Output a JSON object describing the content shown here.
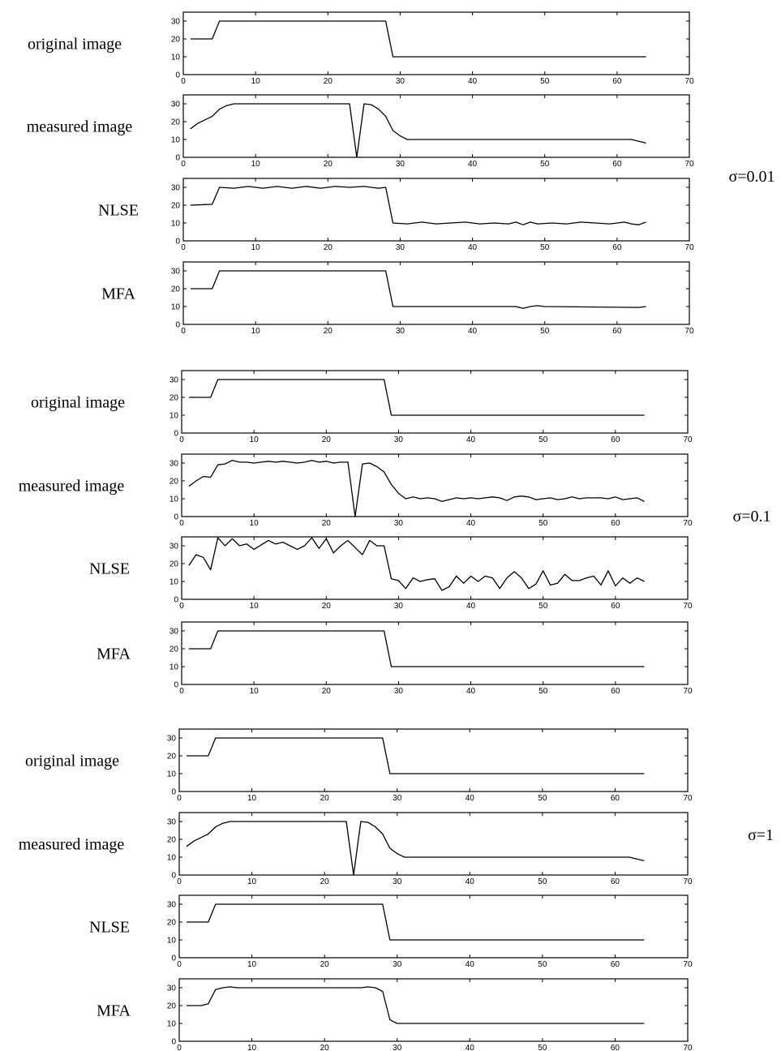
{
  "groups": [
    {
      "sigma_label": "σ=0.01"
    },
    {
      "sigma_label": "σ=0.1"
    },
    {
      "sigma_label": "σ=1"
    }
  ],
  "chart_data": [
    {
      "type": "line",
      "group": 0,
      "label": "original image",
      "xlim": [
        0,
        70
      ],
      "ylim": [
        0,
        35
      ],
      "xticks": [
        0,
        10,
        20,
        30,
        40,
        50,
        60,
        70
      ],
      "yticks": [
        0,
        10,
        20,
        30
      ],
      "x": [
        1,
        4,
        5,
        28,
        29,
        64
      ],
      "y": [
        20,
        20,
        30,
        30,
        10,
        10
      ]
    },
    {
      "type": "line",
      "group": 0,
      "label": "measured image",
      "xlim": [
        0,
        70
      ],
      "ylim": [
        0,
        35
      ],
      "xticks": [
        0,
        10,
        20,
        30,
        40,
        50,
        60,
        70
      ],
      "yticks": [
        0,
        10,
        20,
        30
      ],
      "x": [
        1,
        2,
        3,
        4,
        5,
        6,
        7,
        8,
        10,
        12,
        15,
        18,
        20,
        22,
        23,
        24,
        25,
        26,
        27,
        28,
        29,
        30,
        31,
        35,
        40,
        45,
        50,
        55,
        60,
        62,
        63,
        64
      ],
      "y": [
        16,
        19,
        21,
        23,
        27,
        29,
        30,
        30,
        30,
        30,
        30,
        30,
        30,
        30,
        30,
        0,
        30,
        29.5,
        27,
        23,
        15,
        12,
        10,
        10,
        10,
        10,
        10,
        10,
        10,
        10,
        9,
        8
      ]
    },
    {
      "type": "line",
      "group": 0,
      "label": "NLSE",
      "xlim": [
        0,
        70
      ],
      "ylim": [
        0,
        35
      ],
      "xticks": [
        0,
        10,
        20,
        30,
        40,
        50,
        60,
        70
      ],
      "yticks": [
        0,
        10,
        20,
        30
      ],
      "x": [
        1,
        4,
        5,
        7,
        9,
        11,
        13,
        15,
        17,
        19,
        21,
        23,
        25,
        27,
        28,
        29,
        31,
        33,
        35,
        37,
        39,
        41,
        43,
        45,
        46,
        47,
        48,
        49,
        51,
        53,
        55,
        57,
        59,
        61,
        62,
        63,
        64
      ],
      "y": [
        20,
        20.5,
        30,
        29.5,
        30.5,
        29.5,
        30.5,
        29.5,
        30.5,
        29.5,
        30.5,
        30,
        30.5,
        29.5,
        30,
        10,
        9.5,
        10.5,
        9.5,
        10,
        10.5,
        9.5,
        10,
        9.5,
        10.5,
        9,
        10.5,
        9.5,
        10,
        9.5,
        10.5,
        10,
        9.5,
        10.5,
        9.5,
        9,
        10.5
      ]
    },
    {
      "type": "line",
      "group": 0,
      "label": "MFA",
      "xlim": [
        0,
        70
      ],
      "ylim": [
        0,
        35
      ],
      "xticks": [
        0,
        10,
        20,
        30,
        40,
        50,
        60,
        70
      ],
      "yticks": [
        0,
        10,
        20,
        30
      ],
      "x": [
        1,
        4,
        5,
        28,
        29,
        46,
        47,
        48,
        49,
        50,
        63,
        64
      ],
      "y": [
        20,
        20,
        30,
        30,
        10,
        10,
        9,
        10,
        10.5,
        10,
        9.5,
        10
      ]
    },
    {
      "type": "line",
      "group": 1,
      "label": "original image",
      "xlim": [
        0,
        70
      ],
      "ylim": [
        0,
        35
      ],
      "xticks": [
        0,
        10,
        20,
        30,
        40,
        50,
        60,
        70
      ],
      "yticks": [
        0,
        10,
        20,
        30
      ],
      "x": [
        1,
        4,
        5,
        28,
        29,
        64
      ],
      "y": [
        20,
        20,
        30,
        30,
        10,
        10
      ]
    },
    {
      "type": "line",
      "group": 1,
      "label": "measured image",
      "xlim": [
        0,
        70
      ],
      "ylim": [
        0,
        35
      ],
      "xticks": [
        0,
        10,
        20,
        30,
        40,
        50,
        60,
        70
      ],
      "yticks": [
        0,
        10,
        20,
        30
      ],
      "x": [
        1,
        2,
        3,
        4,
        5,
        6,
        7,
        8,
        9,
        10,
        11,
        12,
        13,
        14,
        15,
        16,
        17,
        18,
        19,
        20,
        21,
        22,
        23,
        24,
        25,
        26,
        27,
        28,
        29,
        30,
        31,
        32,
        33,
        34,
        35,
        36,
        37,
        38,
        39,
        40,
        41,
        42,
        43,
        44,
        45,
        46,
        47,
        48,
        49,
        50,
        51,
        52,
        53,
        54,
        55,
        56,
        57,
        58,
        59,
        60,
        61,
        62,
        63,
        64
      ],
      "y": [
        17,
        20,
        22.5,
        22,
        29,
        29.5,
        31.5,
        30.5,
        30.5,
        30,
        30.5,
        31,
        30.5,
        31,
        30.5,
        30,
        30.5,
        31.5,
        30.5,
        31,
        30,
        30.5,
        30.5,
        0,
        29.5,
        30,
        28,
        25,
        18,
        13,
        10,
        11,
        10,
        10.5,
        10,
        8.5,
        9.5,
        10.5,
        10,
        10.5,
        10,
        10.5,
        11,
        10.5,
        9,
        11,
        11.5,
        11,
        9.5,
        10,
        10.5,
        9.5,
        10,
        11,
        10,
        10.5,
        10.5,
        10.5,
        10,
        11,
        9.5,
        10,
        10.5,
        8.5
      ]
    },
    {
      "type": "line",
      "group": 1,
      "label": "NLSE",
      "xlim": [
        0,
        70
      ],
      "ylim": [
        0,
        35
      ],
      "xticks": [
        0,
        10,
        20,
        30,
        40,
        50,
        60,
        70
      ],
      "yticks": [
        0,
        10,
        20,
        30
      ],
      "x": [
        1,
        2,
        3,
        4,
        5,
        6,
        7,
        8,
        9,
        10,
        11,
        12,
        13,
        14,
        15,
        16,
        17,
        18,
        19,
        20,
        21,
        22,
        23,
        24,
        25,
        26,
        27,
        28,
        29,
        30,
        31,
        32,
        33,
        34,
        35,
        36,
        37,
        38,
        39,
        40,
        41,
        42,
        43,
        44,
        45,
        46,
        47,
        48,
        49,
        50,
        51,
        52,
        53,
        54,
        55,
        56,
        57,
        58,
        59,
        60,
        61,
        62,
        63,
        64
      ],
      "y": [
        19,
        25,
        23.5,
        16.5,
        34.5,
        30,
        34,
        30,
        31,
        28,
        30.5,
        33,
        31,
        32,
        30,
        28,
        30,
        34.5,
        28.5,
        34,
        26,
        30,
        33,
        29,
        25,
        33,
        30,
        30,
        11.5,
        10.5,
        6,
        12,
        10,
        11,
        11.5,
        5,
        7,
        13,
        9,
        13,
        10,
        13,
        12,
        6,
        12,
        15.5,
        12,
        6,
        8.5,
        16,
        8,
        9,
        14,
        10.5,
        10.5,
        12,
        13,
        8,
        16,
        7.5,
        12,
        9,
        12,
        10
      ]
    },
    {
      "type": "line",
      "group": 1,
      "label": "MFA",
      "xlim": [
        0,
        70
      ],
      "ylim": [
        0,
        35
      ],
      "xticks": [
        0,
        10,
        20,
        30,
        40,
        50,
        60,
        70
      ],
      "yticks": [
        0,
        10,
        20,
        30
      ],
      "x": [
        1,
        4,
        5,
        28,
        29,
        64
      ],
      "y": [
        20,
        20,
        30,
        30,
        10,
        10
      ]
    },
    {
      "type": "line",
      "group": 2,
      "label": "original image",
      "xlim": [
        0,
        70
      ],
      "ylim": [
        0,
        35
      ],
      "xticks": [
        0,
        10,
        20,
        30,
        40,
        50,
        60,
        70
      ],
      "yticks": [
        0,
        10,
        20,
        30
      ],
      "x": [
        1,
        4,
        5,
        28,
        29,
        64
      ],
      "y": [
        20,
        20,
        30,
        30,
        10,
        10
      ]
    },
    {
      "type": "line",
      "group": 2,
      "label": "measured image",
      "xlim": [
        0,
        70
      ],
      "ylim": [
        0,
        35
      ],
      "xticks": [
        0,
        10,
        20,
        30,
        40,
        50,
        60,
        70
      ],
      "yticks": [
        0,
        10,
        20,
        30
      ],
      "x": [
        1,
        2,
        3,
        4,
        5,
        6,
        7,
        8,
        10,
        12,
        15,
        18,
        20,
        22,
        23,
        24,
        25,
        26,
        27,
        28,
        29,
        30,
        31,
        35,
        40,
        45,
        50,
        55,
        60,
        62,
        63,
        64
      ],
      "y": [
        16,
        19,
        21,
        23,
        27,
        29,
        30,
        30,
        30,
        30,
        30,
        30,
        30,
        30,
        30,
        0,
        30,
        29.5,
        27,
        23,
        15,
        12,
        10,
        10,
        10,
        10,
        10,
        10,
        10,
        10,
        9,
        8
      ]
    },
    {
      "type": "line",
      "group": 2,
      "label": "NLSE",
      "xlim": [
        0,
        70
      ],
      "ylim": [
        0,
        35
      ],
      "xticks": [
        0,
        10,
        20,
        30,
        40,
        50,
        60,
        70
      ],
      "yticks": [
        0,
        10,
        20,
        30
      ],
      "x": [
        1,
        4,
        5,
        28,
        29,
        64
      ],
      "y": [
        20,
        20,
        30,
        30,
        10,
        10
      ]
    },
    {
      "type": "line",
      "group": 2,
      "label": "MFA",
      "xlim": [
        0,
        70
      ],
      "ylim": [
        0,
        35
      ],
      "xticks": [
        0,
        10,
        20,
        30,
        40,
        50,
        60,
        70
      ],
      "yticks": [
        0,
        10,
        20,
        30
      ],
      "x": [
        1,
        3,
        4,
        5,
        6,
        7,
        8,
        10,
        20,
        25,
        26,
        27,
        28,
        29,
        30,
        31,
        64
      ],
      "y": [
        20,
        20,
        21,
        29,
        30,
        30.5,
        30,
        30,
        30,
        30,
        30.5,
        30,
        28,
        12,
        10,
        10,
        10
      ]
    }
  ]
}
